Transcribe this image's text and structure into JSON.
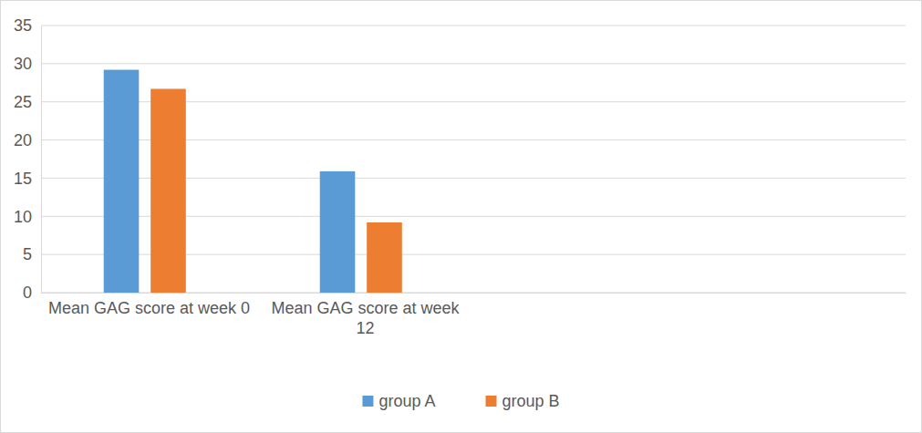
{
  "chart_data": {
    "type": "bar",
    "categories": [
      "Mean GAG score at week 0",
      "Mean GAG score at week 12",
      null,
      null
    ],
    "series": [
      {
        "name": "group A",
        "color": "#5b9bd5",
        "values": [
          29.2,
          15.9,
          null,
          null
        ]
      },
      {
        "name": "group B",
        "color": "#ed7d31",
        "values": [
          26.7,
          9.2,
          null,
          null
        ]
      }
    ],
    "ylim": [
      0,
      35
    ],
    "yticks": [
      0,
      5,
      10,
      15,
      20,
      25,
      30,
      35
    ],
    "grid": true,
    "legend": "bottom"
  }
}
